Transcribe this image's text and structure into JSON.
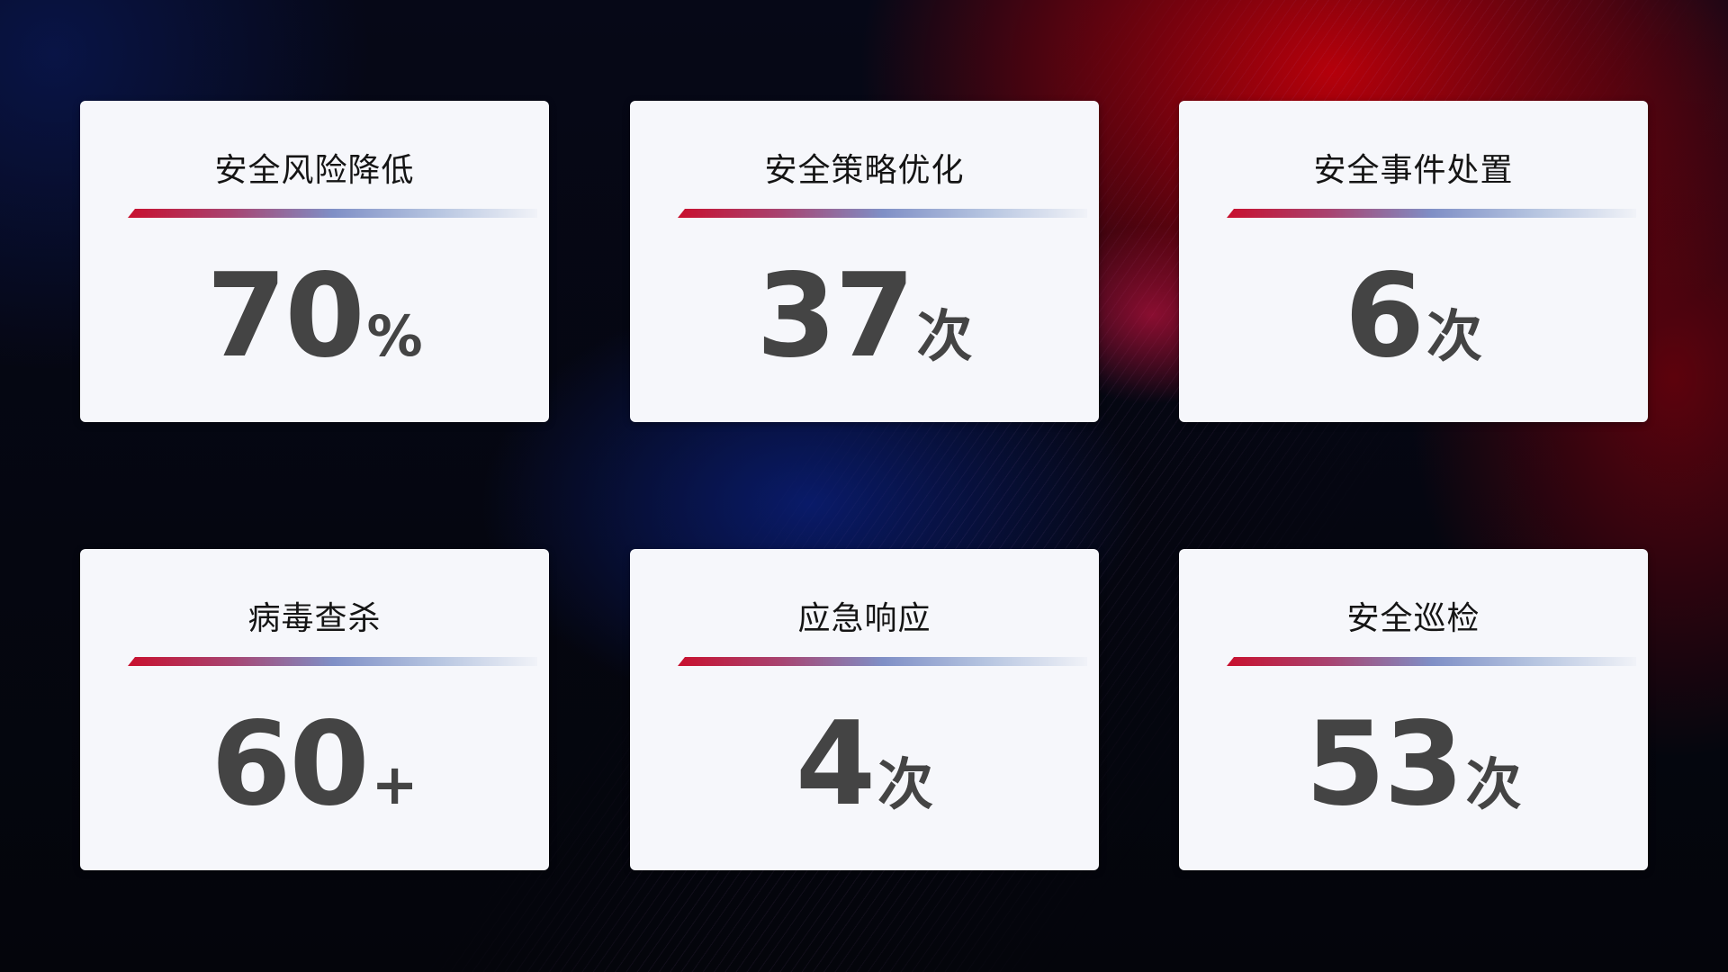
{
  "colors": {
    "accent_red": "#c8102e",
    "accent_blue": "#7f8fc6",
    "card_bg": "#f6f7fb",
    "value_text": "#444444"
  },
  "cards": [
    {
      "title": "安全风险降低",
      "value": "70",
      "unit": "%"
    },
    {
      "title": "安全策略优化",
      "value": "37",
      "unit": "次"
    },
    {
      "title": "安全事件处置",
      "value": "6",
      "unit": "次"
    },
    {
      "title": "病毒查杀",
      "value": "60",
      "unit": "+"
    },
    {
      "title": "应急响应",
      "value": "4",
      "unit": "次"
    },
    {
      "title": "安全巡检",
      "value": "53",
      "unit": "次"
    }
  ]
}
